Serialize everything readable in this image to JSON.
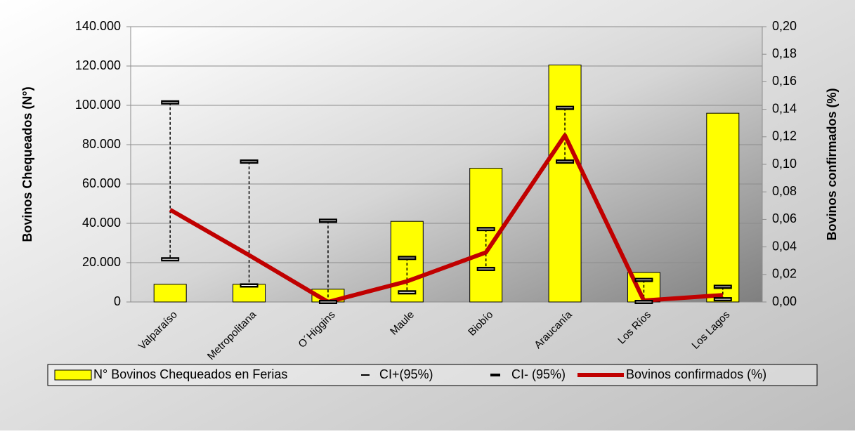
{
  "chart_data": {
    "type": "bar_line",
    "y_label": "Bovinos Chequeados (N°)",
    "y2_label": "Bovinos confirmados (%)",
    "categories": [
      "Valparaíso",
      "Metropolitana",
      "O´Higgins",
      "Maule",
      "Biobío",
      "Araucanía",
      "Los Ríos",
      "Los Lagos"
    ],
    "series": [
      {
        "name": "N° Bovinos Chequeados en Ferias",
        "type": "bar",
        "color": "#ffff00",
        "values": [
          9000,
          9000,
          6500,
          41000,
          68000,
          120500,
          15000,
          96000
        ]
      },
      {
        "name": "CI+(95%)",
        "type": "marker",
        "axis": "y2",
        "color": "#000000",
        "values": [
          0.145,
          0.102,
          0.059,
          0.032,
          0.053,
          0.141,
          0.016,
          0.011
        ]
      },
      {
        "name": "CI- (95%)",
        "type": "marker",
        "axis": "y2",
        "color": "#000000",
        "values": [
          0.031,
          0.012,
          0,
          0.007,
          0.024,
          0.102,
          0,
          0.002
        ]
      },
      {
        "name": "Bovinos confirmados (%)",
        "type": "line",
        "axis": "y2",
        "color": "#c00000",
        "values": [
          0.067,
          0.034,
          0,
          0.015,
          0.036,
          0.121,
          0.001,
          0.005
        ]
      }
    ],
    "ylim": [
      0,
      140000
    ],
    "yticks": [
      0,
      {
        "value": 20000,
        "label": "20.000"
      },
      {
        "value": 40000,
        "label": "40.000"
      },
      {
        "value": 60000,
        "label": "60.000"
      },
      {
        "value": 80000,
        "label": "80.000"
      },
      {
        "value": 100000,
        "label": "100.000"
      },
      {
        "value": 120000,
        "label": "120.000"
      },
      {
        "value": 140000,
        "label": "140.000"
      }
    ],
    "y2lim": [
      0,
      0.2
    ],
    "y2ticks": [
      {
        "value": 0,
        "label": "0,00"
      },
      {
        "value": 0.02,
        "label": "0,02"
      },
      {
        "value": 0.04,
        "label": "0,04"
      },
      {
        "value": 0.06,
        "label": "0,06"
      },
      {
        "value": 0.08,
        "label": "0,08"
      },
      {
        "value": 0.1,
        "label": "0,10"
      },
      {
        "value": 0.12,
        "label": "0,12"
      },
      {
        "value": 0.14,
        "label": "0,14"
      },
      {
        "value": 0.16,
        "label": "0,16"
      },
      {
        "value": 0.18,
        "label": "0,18"
      },
      {
        "value": 0.2,
        "label": "0,20"
      }
    ],
    "grid": true,
    "legend": "bottom"
  }
}
